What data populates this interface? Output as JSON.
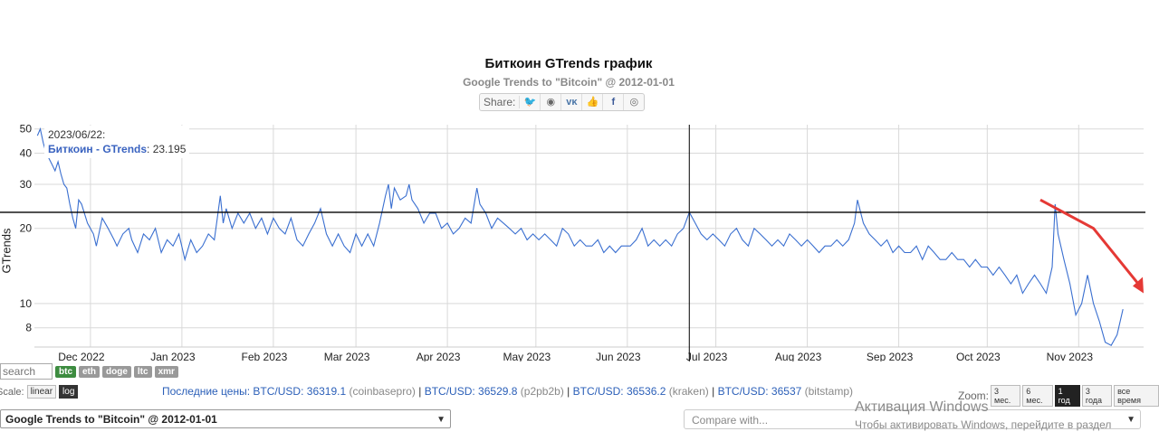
{
  "title": "Биткоин GTrends график",
  "subtitle": "Google Trends to \"Bitcoin\" @ 2012-01-01",
  "share": {
    "label": "Share:",
    "icons": [
      "twitter-icon",
      "reddit-icon",
      "vk-icon",
      "like-icon",
      "facebook-icon",
      "weibo-icon"
    ],
    "glyphs": [
      "🐦",
      "◉",
      "ᴠᴋ",
      "👍",
      "f",
      "◎"
    ]
  },
  "tooltip": {
    "date": "2023/06/22:",
    "series": "Биткоин - GTrends",
    "value": ": 23.195"
  },
  "y_axis_label": "GTrends",
  "chart_data": {
    "type": "line",
    "scale": "log",
    "ylabel": "GTrends",
    "yticks": [
      8,
      10,
      20,
      30,
      40,
      50
    ],
    "ylim": [
      6.7,
      52
    ],
    "xlim": [
      "2022-11-12",
      "2023-11-23"
    ],
    "xticks": [
      {
        "label": "Dec 2022",
        "date": "2022-12-01"
      },
      {
        "label": "Jan 2023",
        "date": "2023-01-01"
      },
      {
        "label": "Feb 2023",
        "date": "2023-02-01"
      },
      {
        "label": "Mar 2023",
        "date": "2023-03-01"
      },
      {
        "label": "Apr 2023",
        "date": "2023-04-01"
      },
      {
        "label": "May 2023",
        "date": "2023-05-01"
      },
      {
        "label": "Jun 2023",
        "date": "2023-06-01"
      },
      {
        "label": "Jul 2023",
        "date": "2023-07-01"
      },
      {
        "label": "Aug 2023",
        "date": "2023-08-01"
      },
      {
        "label": "Sep 2023",
        "date": "2023-09-01"
      },
      {
        "label": "Oct 2023",
        "date": "2023-10-01"
      },
      {
        "label": "Nov 2023",
        "date": "2023-11-01"
      }
    ],
    "crosshair": {
      "date": "2023-06-22",
      "value": 23.195
    },
    "series": [
      {
        "name": "Биткоин - GTrends",
        "color": "#3a6fd0",
        "points": [
          [
            "2022-11-13",
            47
          ],
          [
            "2022-11-14",
            50
          ],
          [
            "2022-11-15",
            44
          ],
          [
            "2022-11-16",
            40
          ],
          [
            "2022-11-17",
            38
          ],
          [
            "2022-11-18",
            36
          ],
          [
            "2022-11-19",
            34
          ],
          [
            "2022-11-20",
            37
          ],
          [
            "2022-11-21",
            33
          ],
          [
            "2022-11-22",
            30
          ],
          [
            "2022-11-23",
            29
          ],
          [
            "2022-11-24",
            25
          ],
          [
            "2022-11-25",
            22
          ],
          [
            "2022-11-26",
            20
          ],
          [
            "2022-11-27",
            26
          ],
          [
            "2022-11-28",
            25
          ],
          [
            "2022-11-30",
            21
          ],
          [
            "2022-12-02",
            19
          ],
          [
            "2022-12-03",
            17
          ],
          [
            "2022-12-05",
            22
          ],
          [
            "2022-12-07",
            20
          ],
          [
            "2022-12-09",
            18
          ],
          [
            "2022-12-10",
            17
          ],
          [
            "2022-12-12",
            19
          ],
          [
            "2022-12-14",
            20
          ],
          [
            "2022-12-15",
            18
          ],
          [
            "2022-12-17",
            16
          ],
          [
            "2022-12-19",
            19
          ],
          [
            "2022-12-21",
            18
          ],
          [
            "2022-12-23",
            20
          ],
          [
            "2022-12-25",
            16
          ],
          [
            "2022-12-27",
            18
          ],
          [
            "2022-12-29",
            17
          ],
          [
            "2022-12-31",
            19
          ],
          [
            "2023-01-02",
            15
          ],
          [
            "2023-01-04",
            18
          ],
          [
            "2023-01-06",
            16
          ],
          [
            "2023-01-08",
            17
          ],
          [
            "2023-01-10",
            19
          ],
          [
            "2023-01-12",
            18
          ],
          [
            "2023-01-13",
            22
          ],
          [
            "2023-01-14",
            27
          ],
          [
            "2023-01-15",
            21
          ],
          [
            "2023-01-16",
            24
          ],
          [
            "2023-01-18",
            20
          ],
          [
            "2023-01-20",
            23
          ],
          [
            "2023-01-22",
            21
          ],
          [
            "2023-01-24",
            23
          ],
          [
            "2023-01-26",
            20
          ],
          [
            "2023-01-28",
            22
          ],
          [
            "2023-01-30",
            19
          ],
          [
            "2023-02-01",
            22
          ],
          [
            "2023-02-03",
            20
          ],
          [
            "2023-02-05",
            19
          ],
          [
            "2023-02-07",
            22
          ],
          [
            "2023-02-09",
            18
          ],
          [
            "2023-02-11",
            17
          ],
          [
            "2023-02-13",
            19
          ],
          [
            "2023-02-15",
            21
          ],
          [
            "2023-02-17",
            24
          ],
          [
            "2023-02-19",
            19
          ],
          [
            "2023-02-21",
            17
          ],
          [
            "2023-02-23",
            19
          ],
          [
            "2023-02-25",
            17
          ],
          [
            "2023-02-27",
            16
          ],
          [
            "2023-03-01",
            19
          ],
          [
            "2023-03-03",
            17
          ],
          [
            "2023-03-05",
            19
          ],
          [
            "2023-03-07",
            17
          ],
          [
            "2023-03-09",
            21
          ],
          [
            "2023-03-11",
            27
          ],
          [
            "2023-03-12",
            30
          ],
          [
            "2023-03-13",
            24
          ],
          [
            "2023-03-14",
            29
          ],
          [
            "2023-03-16",
            26
          ],
          [
            "2023-03-18",
            27
          ],
          [
            "2023-03-19",
            30
          ],
          [
            "2023-03-20",
            26
          ],
          [
            "2023-03-22",
            24
          ],
          [
            "2023-03-24",
            21
          ],
          [
            "2023-03-26",
            23
          ],
          [
            "2023-03-28",
            23
          ],
          [
            "2023-03-30",
            20
          ],
          [
            "2023-04-01",
            21
          ],
          [
            "2023-04-03",
            19
          ],
          [
            "2023-04-05",
            20
          ],
          [
            "2023-04-07",
            22
          ],
          [
            "2023-04-09",
            21
          ],
          [
            "2023-04-11",
            29
          ],
          [
            "2023-04-12",
            25
          ],
          [
            "2023-04-14",
            23
          ],
          [
            "2023-04-16",
            20
          ],
          [
            "2023-04-18",
            22
          ],
          [
            "2023-04-20",
            21
          ],
          [
            "2023-04-22",
            20
          ],
          [
            "2023-04-24",
            19
          ],
          [
            "2023-04-26",
            20
          ],
          [
            "2023-04-28",
            18
          ],
          [
            "2023-04-30",
            19
          ],
          [
            "2023-05-02",
            18
          ],
          [
            "2023-05-04",
            19
          ],
          [
            "2023-05-06",
            18
          ],
          [
            "2023-05-08",
            17
          ],
          [
            "2023-05-10",
            20
          ],
          [
            "2023-05-12",
            19
          ],
          [
            "2023-05-14",
            17
          ],
          [
            "2023-05-16",
            18
          ],
          [
            "2023-05-18",
            17
          ],
          [
            "2023-05-20",
            17
          ],
          [
            "2023-05-22",
            18
          ],
          [
            "2023-05-24",
            16
          ],
          [
            "2023-05-26",
            17
          ],
          [
            "2023-05-28",
            16
          ],
          [
            "2023-05-30",
            17
          ],
          [
            "2023-06-02",
            17
          ],
          [
            "2023-06-04",
            18
          ],
          [
            "2023-06-06",
            20
          ],
          [
            "2023-06-08",
            17
          ],
          [
            "2023-06-10",
            18
          ],
          [
            "2023-06-12",
            17
          ],
          [
            "2023-06-14",
            18
          ],
          [
            "2023-06-16",
            17
          ],
          [
            "2023-06-18",
            19
          ],
          [
            "2023-06-20",
            20
          ],
          [
            "2023-06-22",
            23.195
          ],
          [
            "2023-06-24",
            21
          ],
          [
            "2023-06-26",
            19
          ],
          [
            "2023-06-28",
            18
          ],
          [
            "2023-06-30",
            19
          ],
          [
            "2023-07-02",
            18
          ],
          [
            "2023-07-04",
            17
          ],
          [
            "2023-07-06",
            19
          ],
          [
            "2023-07-08",
            20
          ],
          [
            "2023-07-10",
            18
          ],
          [
            "2023-07-12",
            17
          ],
          [
            "2023-07-14",
            20
          ],
          [
            "2023-07-16",
            19
          ],
          [
            "2023-07-18",
            18
          ],
          [
            "2023-07-20",
            17
          ],
          [
            "2023-07-22",
            18
          ],
          [
            "2023-07-24",
            17
          ],
          [
            "2023-07-26",
            19
          ],
          [
            "2023-07-28",
            18
          ],
          [
            "2023-07-30",
            17
          ],
          [
            "2023-08-01",
            18
          ],
          [
            "2023-08-03",
            17
          ],
          [
            "2023-08-05",
            16
          ],
          [
            "2023-08-07",
            17
          ],
          [
            "2023-08-09",
            17
          ],
          [
            "2023-08-11",
            18
          ],
          [
            "2023-08-13",
            17
          ],
          [
            "2023-08-15",
            18
          ],
          [
            "2023-08-17",
            21
          ],
          [
            "2023-08-18",
            26
          ],
          [
            "2023-08-20",
            21
          ],
          [
            "2023-08-22",
            19
          ],
          [
            "2023-08-24",
            18
          ],
          [
            "2023-08-26",
            17
          ],
          [
            "2023-08-28",
            18
          ],
          [
            "2023-08-30",
            16
          ],
          [
            "2023-09-01",
            17
          ],
          [
            "2023-09-03",
            16
          ],
          [
            "2023-09-05",
            16
          ],
          [
            "2023-09-07",
            17
          ],
          [
            "2023-09-09",
            15
          ],
          [
            "2023-09-11",
            17
          ],
          [
            "2023-09-13",
            16
          ],
          [
            "2023-09-15",
            15
          ],
          [
            "2023-09-17",
            15
          ],
          [
            "2023-09-19",
            16
          ],
          [
            "2023-09-21",
            15
          ],
          [
            "2023-09-23",
            15
          ],
          [
            "2023-09-25",
            14
          ],
          [
            "2023-09-27",
            15
          ],
          [
            "2023-09-29",
            14
          ],
          [
            "2023-10-01",
            14
          ],
          [
            "2023-10-03",
            13
          ],
          [
            "2023-10-05",
            14
          ],
          [
            "2023-10-07",
            13
          ],
          [
            "2023-10-09",
            12
          ],
          [
            "2023-10-11",
            13
          ],
          [
            "2023-10-13",
            11
          ],
          [
            "2023-10-15",
            12
          ],
          [
            "2023-10-17",
            13
          ],
          [
            "2023-10-19",
            12
          ],
          [
            "2023-10-21",
            11
          ],
          [
            "2023-10-23",
            14
          ],
          [
            "2023-10-24",
            25
          ],
          [
            "2023-10-25",
            19
          ],
          [
            "2023-10-27",
            15
          ],
          [
            "2023-10-29",
            12
          ],
          [
            "2023-10-31",
            9
          ],
          [
            "2023-11-02",
            10
          ],
          [
            "2023-11-04",
            13
          ],
          [
            "2023-11-06",
            10
          ],
          [
            "2023-11-08",
            8.5
          ],
          [
            "2023-11-10",
            7
          ],
          [
            "2023-11-12",
            6.8
          ],
          [
            "2023-11-14",
            7.5
          ],
          [
            "2023-11-16",
            9.5
          ]
        ]
      }
    ],
    "annotations": [
      {
        "type": "horizontal-line",
        "value": 23.195,
        "color": "#000000"
      },
      {
        "type": "vertical-line",
        "date": "2023-06-22",
        "color": "#000000"
      },
      {
        "type": "arrow",
        "color": "#e53935",
        "from": [
          "2023-10-19",
          26
        ],
        "to": [
          "2023-11-23",
          11
        ]
      }
    ]
  },
  "controls": {
    "search_placeholder": "search",
    "coins": [
      {
        "label": "btc",
        "active": true
      },
      {
        "label": "eth",
        "active": false
      },
      {
        "label": "doge",
        "active": false
      },
      {
        "label": "ltc",
        "active": false
      },
      {
        "label": "xmr",
        "active": false
      }
    ],
    "scale_label": "Scale:",
    "scale_options": [
      {
        "label": "linear",
        "active": false
      },
      {
        "label": "log",
        "active": true
      }
    ],
    "prices_label": "Последние цены:",
    "prices": [
      {
        "pair": "BTC/USD:",
        "value": "36319.1",
        "source": "(coinbasepro)"
      },
      {
        "pair": "BTC/USD:",
        "value": "36529.8",
        "source": "(p2pb2b)"
      },
      {
        "pair": "BTC/USD:",
        "value": "36536.2",
        "source": "(kraken)"
      },
      {
        "pair": "BTC/USD:",
        "value": "36537",
        "source": "(bitstamp)"
      }
    ],
    "zoom_label": "Zoom:",
    "zoom_options": [
      {
        "label": "3 мес.",
        "active": false
      },
      {
        "label": "6 мес.",
        "active": false
      },
      {
        "label": "1 год",
        "active": true
      },
      {
        "label": "3 года",
        "active": false
      },
      {
        "label": "все время",
        "active": false
      }
    ],
    "dataset_select": "Google Trends to \"Bitcoin\" @ 2012-01-01",
    "compare_placeholder": "Compare with..."
  },
  "overlay": {
    "activation_title": "Активация Windows",
    "activation_text": "Чтобы активировать Windows, перейдите в раздел"
  }
}
